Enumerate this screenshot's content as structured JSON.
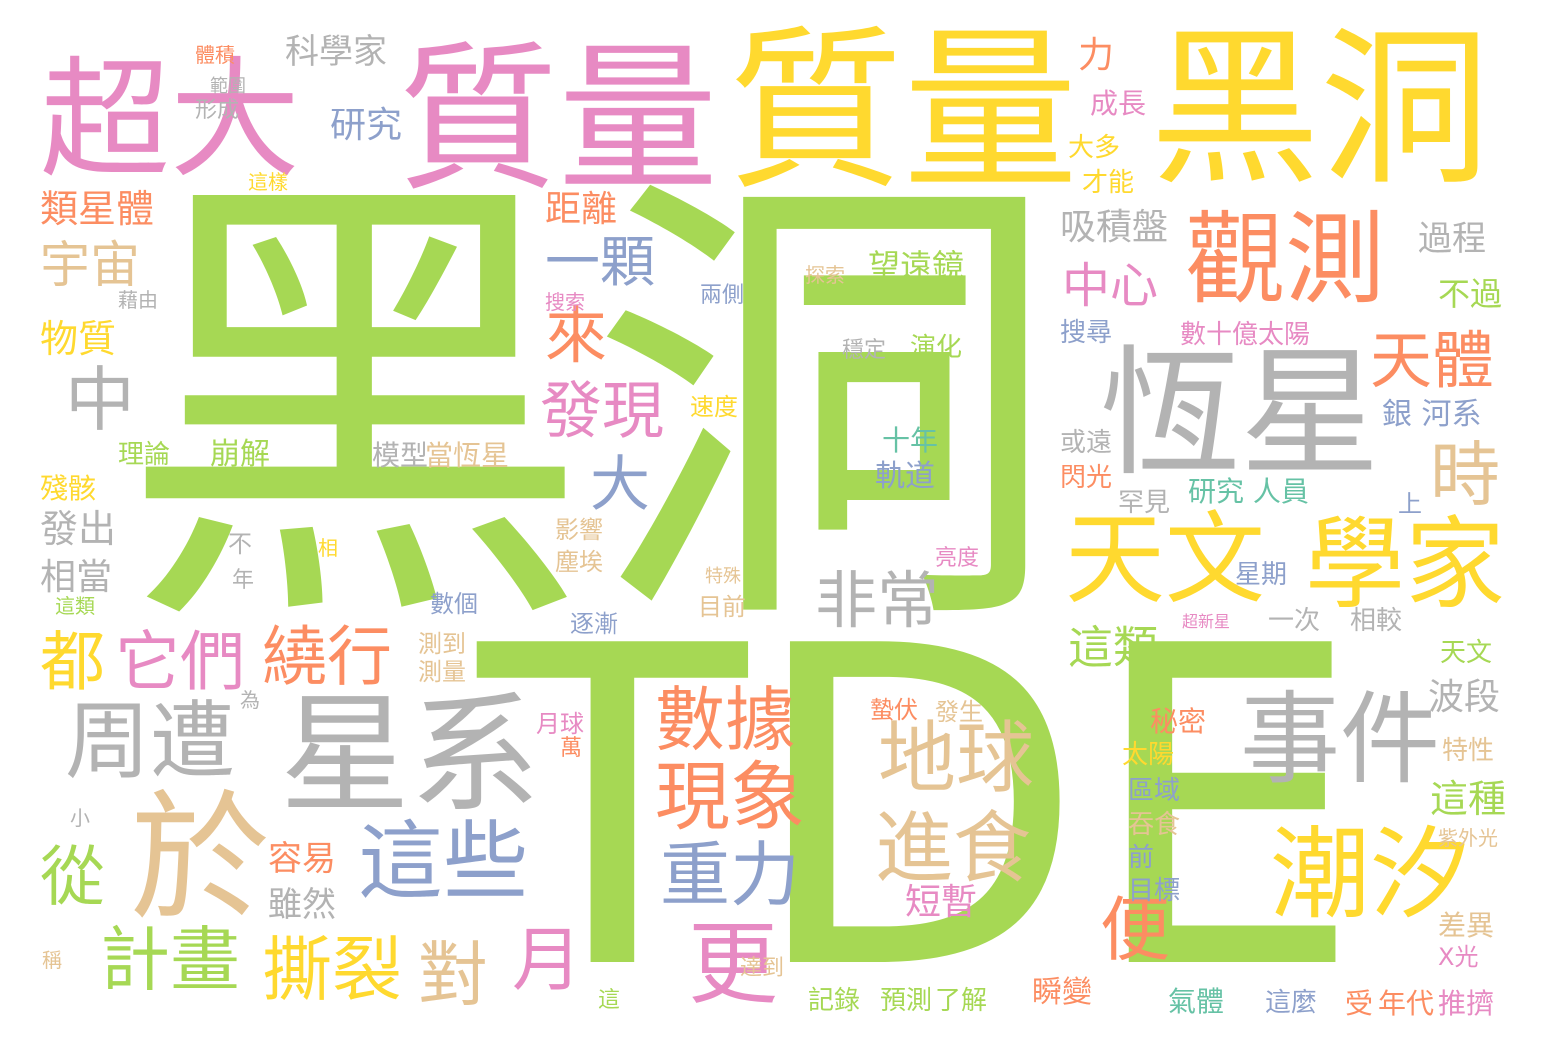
{
  "palette": {
    "green": "#a6d854",
    "yellow": "#ffd92f",
    "pink": "#e78ac3",
    "orange": "#fc8d62",
    "gray": "#b3b3b3",
    "tan": "#e5c494",
    "blue": "#8da0cb",
    "teal": "#66c2a5"
  },
  "words": {
    "heidong_main": "黑洞",
    "tde": "TDE",
    "zhiliang_yellow": "質量",
    "heidong_top": "黑洞",
    "chaoda": "超大",
    "zhiliang_pink": "質量",
    "hengxing": "恆星",
    "xingxi": "星系",
    "guance": "觀測",
    "tianwen": "天文",
    "xuejia": "學家",
    "chaoxi": "潮汐",
    "yu": "於",
    "shijian": "事件",
    "zhouzao": "周遭",
    "diqiu": "地球",
    "jinshi": "進食",
    "zheixie": "這些",
    "zhongli": "重力",
    "xianxiang": "現象",
    "shuju": "數據",
    "sili": "撕裂",
    "raoxing": "繞行",
    "jihua": "計畫",
    "tamen": "它們",
    "dou": "都",
    "cong": "從",
    "geng": "更",
    "yue": "月",
    "dui": "對",
    "bian": "便",
    "feichang": "非常",
    "faxian": "發現",
    "lai": "來",
    "yike": "一顆",
    "zhong": "中",
    "da": "大",
    "shi": "時",
    "tianti": "天體",
    "zhongxin": "中心",
    "yuzhou": "宇宙",
    "leixingti": "類星體",
    "kexuejia": "科學家",
    "yanjiu": "研究",
    "juli": "距離",
    "xijipan": "吸積盤",
    "wangyuanjing": "望遠鏡",
    "zheilei": "這類",
    "zheizhong": "這種",
    "duanzan": "短暫",
    "rongyi": "容易",
    "suiran": "雖然",
    "wuzhi": "物質",
    "lilun": "理論",
    "bengjie": "崩解",
    "moxing": "模型",
    "dang_hengxing": "當恆星",
    "shinian": "十年",
    "guidao": "軌道",
    "yanhua": "演化",
    "wending": "穩定",
    "fachu": "發出",
    "xiangdang": "相當",
    "canhai": "殘骸",
    "li": "力",
    "chengzhang": "成長",
    "daduo": "大多",
    "caineng": "才能",
    "guocheng": "過程",
    "buguo": "不過",
    "shushiyi": "數十億太陽",
    "sousuo": "搜尋",
    "yinhexi": "銀 河系",
    "huoyuan": "或遠",
    "shanguang": "閃光",
    "hanjian": "罕見",
    "yanjiurenyuan": "研究 人員",
    "xingqi": "星期",
    "yici": "一次",
    "xiangjiao": "相較",
    "boduan": "波段",
    "mimi": "秘密",
    "taiyang": "太陽",
    "quyu": "區域",
    "tunshi": "吞食",
    "qian": "前",
    "mubiao": "目標",
    "qiti": "氣體",
    "zheimo": "這麼",
    "shou": "受",
    "niandai": "年代",
    "tuiji": "推擠",
    "chayi": "差異",
    "xguang": "X光",
    "texing": "特性",
    "ziwaiguang": "紫外光",
    "tianwen_small": "天文",
    "shunbian": "瞬變",
    "yuqiu": "月球",
    "sudu": "速度",
    "yingxiang": "影響",
    "chenai": "塵埃",
    "shuge": "數個",
    "zhujian": "逐漸",
    "cedao": "測到",
    "celiang": "測量",
    "mudian": "目前",
    "teshu": "特殊",
    "liangdu": "亮度",
    "zhefu": "蟄伏",
    "fasheng": "發生",
    "jilu": "記錄",
    "yuce": "預測",
    "liaojie": "了解",
    "dadao": "達到",
    "liangce": "兩側",
    "tiji": "體積",
    "fanwei": "範圍",
    "xingcheng": "形成",
    "zheiyang": "這樣",
    "souzhuo": "搜索",
    "tansuo": "探索",
    "bu": "不",
    "nian": "年",
    "wei": "為",
    "xiao": "小",
    "cheng": "稱",
    "wan": "萬",
    "xiang": "相",
    "zheilei2": "這類",
    "zhe": "這",
    "jiedu": "藉由",
    "chaoxinxing": "超新星",
    "shang": "上"
  }
}
